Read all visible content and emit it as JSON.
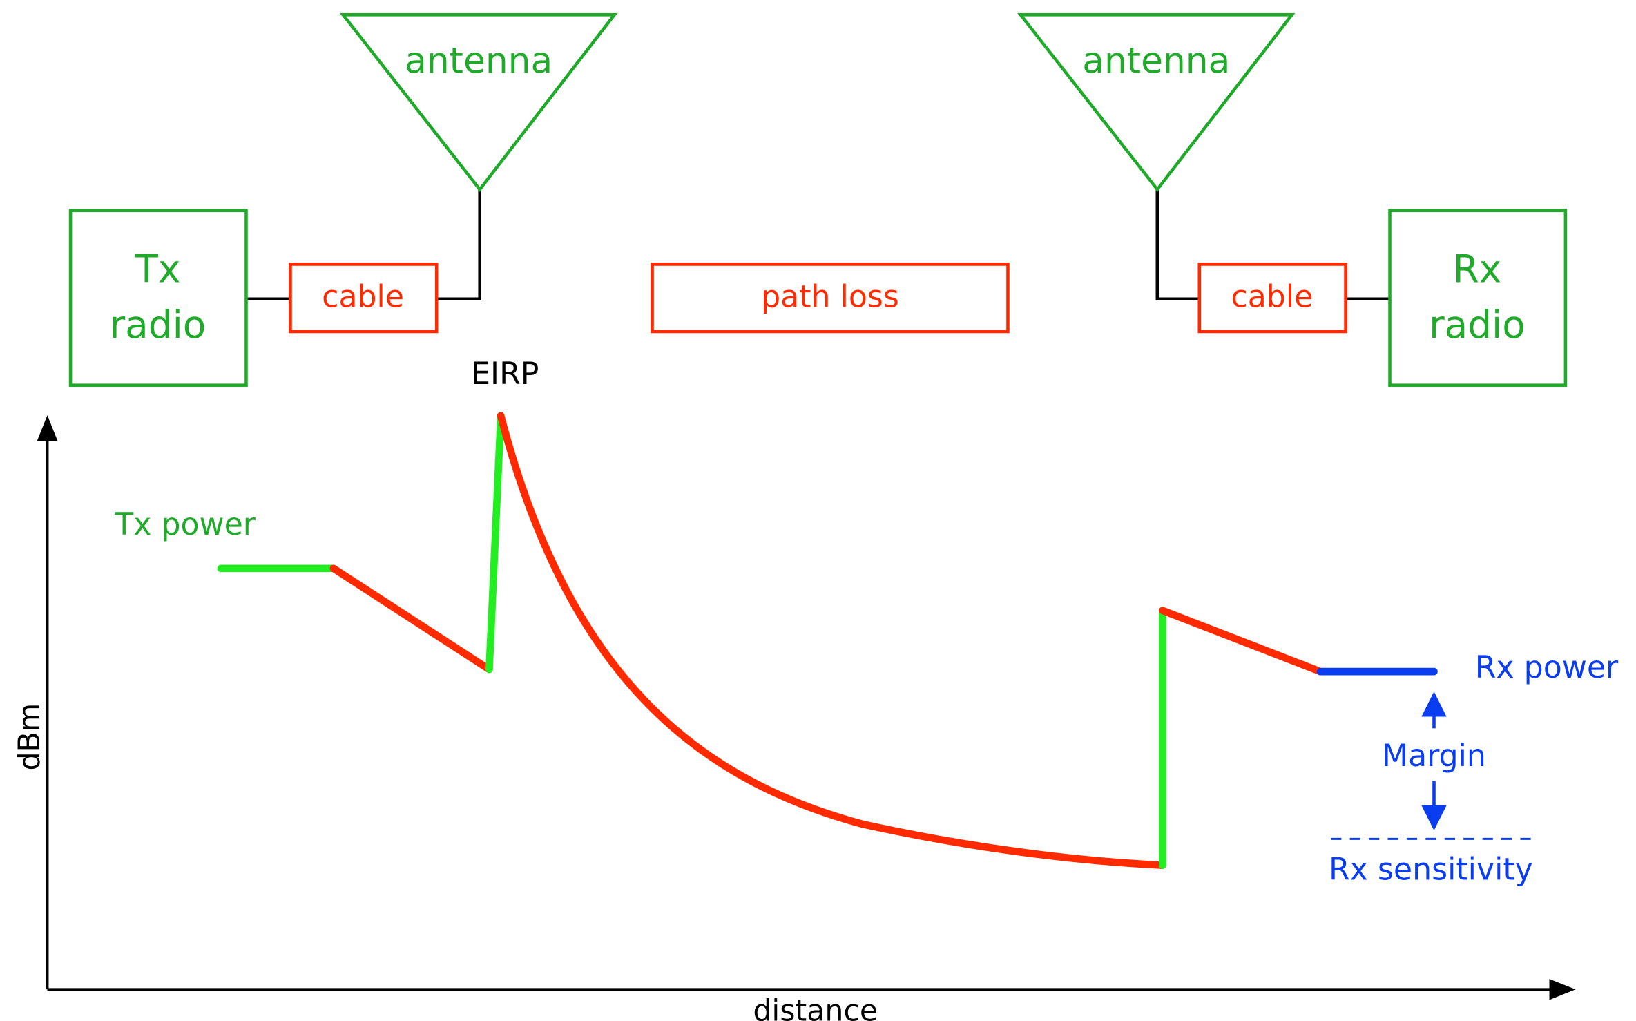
{
  "tx_radio": {
    "lines": [
      "Tx",
      "radio"
    ]
  },
  "tx_antenna": {
    "label": "antenna"
  },
  "tx_cable": {
    "label": "cable"
  },
  "path_loss": {
    "label": "path loss"
  },
  "rx_antenna": {
    "label": "antenna"
  },
  "rx_cable": {
    "label": "cable"
  },
  "rx_radio": {
    "lines": [
      "Rx",
      "radio"
    ]
  },
  "graph": {
    "y_label": "dBm",
    "x_label": "distance",
    "eirp": "EIRP",
    "tx_power": "Tx power",
    "rx_power": "Rx power",
    "margin": "Margin",
    "rx_sensitivity": "Rx sensitivity"
  }
}
